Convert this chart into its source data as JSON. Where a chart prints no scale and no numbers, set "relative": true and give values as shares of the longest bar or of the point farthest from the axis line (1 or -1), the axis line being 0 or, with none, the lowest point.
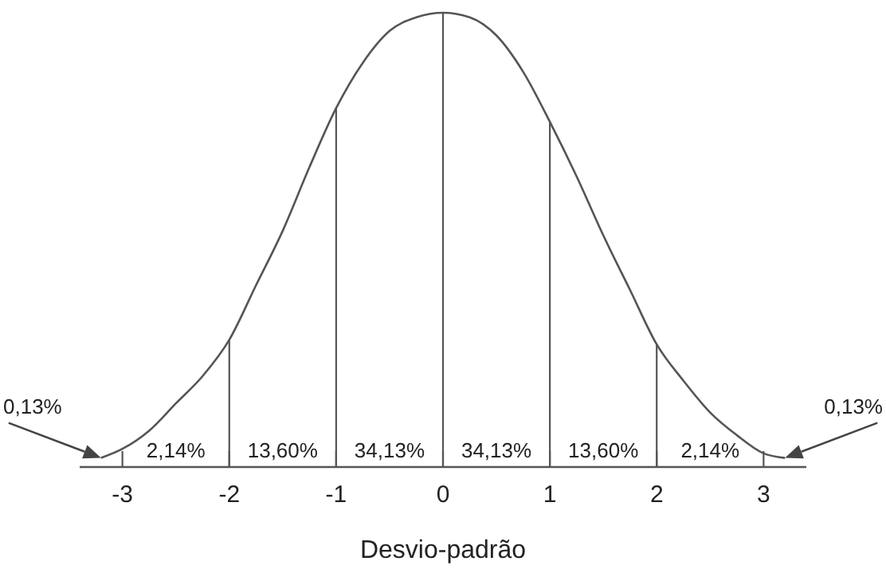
{
  "chart_data": {
    "type": "line",
    "relative": true,
    "xlabel": "Desvio-padrão",
    "tick_labels": "x",
    "grid": false,
    "marker": "none",
    "line_style": "solid",
    "xlim": [
      -3.4,
      3.4
    ],
    "xticks": [
      -3,
      -2,
      -1,
      0,
      1,
      2,
      3
    ],
    "series": [
      {
        "color": "#555555",
        "x": [
          -3.2,
          -3,
          -2.75,
          -2.5,
          -2.25,
          -2,
          -1.75,
          -1.5,
          -1.25,
          -1,
          -0.75,
          -0.5,
          -0.25,
          0,
          0.25,
          0.5,
          0.75,
          1,
          1.25,
          1.5,
          1.75,
          2,
          2.25,
          2.5,
          2.75,
          3,
          3.2
        ],
        "values": [
          0.02,
          0.04,
          0.08,
          0.14,
          0.2,
          0.28,
          0.4,
          0.52,
          0.66,
          0.79,
          0.89,
          0.96,
          0.99,
          1.0,
          0.99,
          0.95,
          0.87,
          0.76,
          0.64,
          0.51,
          0.39,
          0.27,
          0.19,
          0.12,
          0.07,
          0.03,
          0.02
        ]
      }
    ],
    "ref_lines": [
      {
        "axis": "x",
        "value": -2
      },
      {
        "axis": "x",
        "value": -1
      },
      {
        "axis": "x",
        "value": 0
      },
      {
        "axis": "x",
        "value": 1
      },
      {
        "axis": "x",
        "value": 2
      }
    ],
    "annotations": [
      {
        "text": "0,13%",
        "x": -3.2,
        "y": 0.02
      },
      "2,14%",
      "13,60%",
      "34,13%",
      "34,13%",
      "13,60%",
      "2,14%",
      {
        "text": "0,13%",
        "x": 3.2,
        "y": 0.02
      }
    ]
  }
}
